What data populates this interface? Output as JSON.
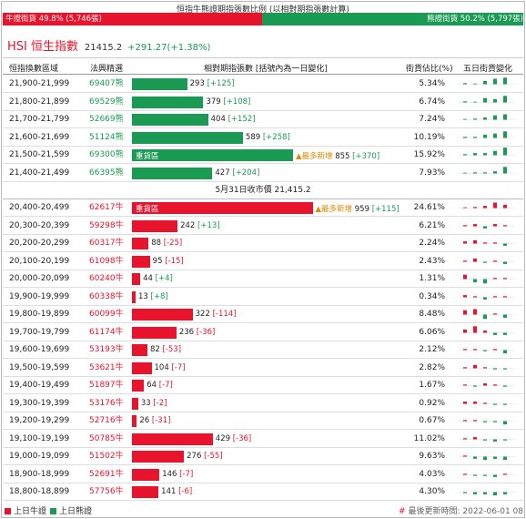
{
  "ratio": {
    "title": "恒指牛熊證期指張數比例 (以相對期指張數計算)",
    "bull_label": "牛證街貨 49.8% (5,746張)",
    "bear_label": "熊證街貨 50.2% (5,797張)",
    "bull_pct": 49.8,
    "bear_pct": 50.2
  },
  "hsi": {
    "name": "HSI 恒生指數",
    "price": "21415.2",
    "change": "+291.27(+1.38%)"
  },
  "table": {
    "headers": {
      "range": "恒指換數區域",
      "code": "法興精選",
      "contracts": "相對期指張數 [括號內為一日變化]",
      "share": "街貨佔比(%)",
      "trend": "五日街貨變化"
    },
    "close_label": "5月31日收市價 21,415.2",
    "bar_tag": "重貨區",
    "max_increase_label": "最多新增",
    "bear_rows": [
      {
        "range": "21,900-21,999",
        "code": "69407熊",
        "contracts": "293",
        "delta": "[+125]",
        "contracts_n": 293,
        "share": "5.34%",
        "heavy": false,
        "max_increase": false,
        "trend": [
          1,
          0,
          3,
          5,
          6
        ]
      },
      {
        "range": "21,800-21,899",
        "code": "69529熊",
        "contracts": "379",
        "delta": "[+108]",
        "contracts_n": 379,
        "share": "6.74%",
        "heavy": false,
        "max_increase": false,
        "trend": [
          1,
          0,
          4,
          3,
          6
        ]
      },
      {
        "range": "21,700-21,799",
        "code": "52669熊",
        "contracts": "404",
        "delta": "[+152]",
        "contracts_n": 404,
        "share": "7.24%",
        "heavy": false,
        "max_increase": false,
        "trend": [
          0,
          1,
          2,
          4,
          5
        ]
      },
      {
        "range": "21,600-21,699",
        "code": "51124熊",
        "contracts": "589",
        "delta": "[+258]",
        "contracts_n": 589,
        "share": "10.19%",
        "heavy": false,
        "max_increase": false,
        "trend": [
          1,
          1,
          3,
          4,
          6
        ]
      },
      {
        "range": "21,500-21,599",
        "code": "69300熊",
        "contracts": "855",
        "delta": "[+370]",
        "contracts_n": 855,
        "share": "15.92%",
        "heavy": true,
        "max_increase": true,
        "trend": [
          1,
          2,
          2,
          4,
          7
        ]
      },
      {
        "range": "21,400-21,499",
        "code": "66395熊",
        "contracts": "427",
        "delta": "[+204]",
        "contracts_n": 427,
        "share": "7.93%",
        "heavy": false,
        "max_increase": false,
        "trend": [
          0,
          1,
          1,
          2,
          6
        ]
      }
    ],
    "bull_rows": [
      {
        "range": "20,400-20,499",
        "code": "62617牛",
        "contracts": "959",
        "delta": "[+115]",
        "contracts_n": 959,
        "share": "24.61%",
        "heavy": true,
        "max_increase": true,
        "trend": [
          0,
          1,
          2,
          5,
          3
        ]
      },
      {
        "range": "20,300-20,399",
        "code": "59298牛",
        "contracts": "242",
        "delta": "[+13]",
        "contracts_n": 242,
        "share": "6.21%",
        "heavy": false,
        "max_increase": false,
        "trend": [
          1,
          2,
          -2,
          2,
          1
        ]
      },
      {
        "range": "20,200-20,299",
        "code": "60317牛",
        "contracts": "88",
        "delta": "[-25]",
        "contracts_n": 88,
        "share": "2.24%",
        "heavy": false,
        "max_increase": false,
        "trend": [
          2,
          3,
          1,
          1,
          -2
        ]
      },
      {
        "range": "20,100-20,199",
        "code": "61098牛",
        "contracts": "95",
        "delta": "[-15]",
        "contracts_n": 95,
        "share": "2.43%",
        "heavy": false,
        "max_increase": false,
        "trend": [
          1,
          3,
          -1,
          1,
          -2
        ]
      },
      {
        "range": "20,000-20,099",
        "code": "60240牛",
        "contracts": "44",
        "delta": "[+4]",
        "contracts_n": 44,
        "share": "1.31%",
        "heavy": false,
        "max_increase": false,
        "trend": [
          4,
          -3,
          -4,
          1,
          1
        ]
      },
      {
        "range": "19,900-19,999",
        "code": "60338牛",
        "contracts": "13",
        "delta": "[+8]",
        "contracts_n": 13,
        "share": "0.34%",
        "heavy": false,
        "max_increase": false,
        "trend": [
          2,
          1,
          -2,
          1,
          1
        ]
      },
      {
        "range": "19,800-19,899",
        "code": "60099牛",
        "contracts": "322",
        "delta": "[-114]",
        "contracts_n": 322,
        "share": "8.48%",
        "heavy": false,
        "max_increase": false,
        "trend": [
          4,
          5,
          -4,
          1,
          -3
        ]
      },
      {
        "range": "19,700-19,799",
        "code": "61174牛",
        "contracts": "236",
        "delta": "[-36]",
        "contracts_n": 236,
        "share": "6.06%",
        "heavy": false,
        "max_increase": false,
        "trend": [
          3,
          6,
          2,
          -2,
          -2
        ]
      },
      {
        "range": "19,600-19,699",
        "code": "53193牛",
        "contracts": "82",
        "delta": "[-53]",
        "contracts_n": 82,
        "share": "2.12%",
        "heavy": false,
        "max_increase": false,
        "trend": [
          1,
          1,
          -1,
          1,
          -3
        ]
      },
      {
        "range": "19,500-19,599",
        "code": "53621牛",
        "contracts": "104",
        "delta": "[-7]",
        "contracts_n": 104,
        "share": "2.82%",
        "heavy": false,
        "max_increase": false,
        "trend": [
          1,
          3,
          1,
          -1,
          -1
        ]
      },
      {
        "range": "19,400-19,499",
        "code": "51897牛",
        "contracts": "64",
        "delta": "[-7]",
        "contracts_n": 64,
        "share": "1.67%",
        "heavy": false,
        "max_increase": false,
        "trend": [
          1,
          -1,
          2,
          1,
          -1
        ]
      },
      {
        "range": "19,300-19,399",
        "code": "53176牛",
        "contracts": "33",
        "delta": "[-2]",
        "contracts_n": 33,
        "share": "0.92%",
        "heavy": false,
        "max_increase": false,
        "trend": [
          2,
          2,
          1,
          -1,
          -1
        ]
      },
      {
        "range": "19,200-19,299",
        "code": "52716牛",
        "contracts": "26",
        "delta": "[-31]",
        "contracts_n": 26,
        "share": "0.67%",
        "heavy": false,
        "max_increase": false,
        "trend": [
          1,
          1,
          -1,
          -1,
          -3
        ]
      },
      {
        "range": "19,100-19,199",
        "code": "50785牛",
        "contracts": "429",
        "delta": "[-36]",
        "contracts_n": 429,
        "share": "11.02%",
        "heavy": false,
        "max_increase": false,
        "trend": [
          1,
          2,
          -1,
          -2,
          -1
        ]
      },
      {
        "range": "19,000-19,099",
        "code": "51502牛",
        "contracts": "276",
        "delta": "[-55]",
        "contracts_n": 276,
        "share": "9.63%",
        "heavy": false,
        "max_increase": false,
        "trend": [
          1,
          -2,
          -3,
          -2,
          -3
        ]
      },
      {
        "range": "18,900-18,999",
        "code": "52691牛",
        "contracts": "146",
        "delta": "[-7]",
        "contracts_n": 146,
        "share": "4.03%",
        "heavy": false,
        "max_increase": false,
        "trend": [
          1,
          -1,
          -1,
          -2,
          1
        ]
      },
      {
        "range": "18,800-18,899",
        "code": "57756牛",
        "contracts": "141",
        "delta": "[-6]",
        "contracts_n": 141,
        "share": "4.30%",
        "heavy": false,
        "max_increase": false,
        "trend": [
          -1,
          -2,
          -2,
          -3,
          -2
        ]
      }
    ]
  },
  "footer": {
    "bull_legend": "上日牛證",
    "bear_legend": "上日熊證",
    "update_hash": "#",
    "update_time": "最後更新時間: 2022-06-01 08"
  },
  "colors": {
    "bull": "#e8132c",
    "bear": "#1a9a53",
    "max_marker": "#e08a00"
  }
}
